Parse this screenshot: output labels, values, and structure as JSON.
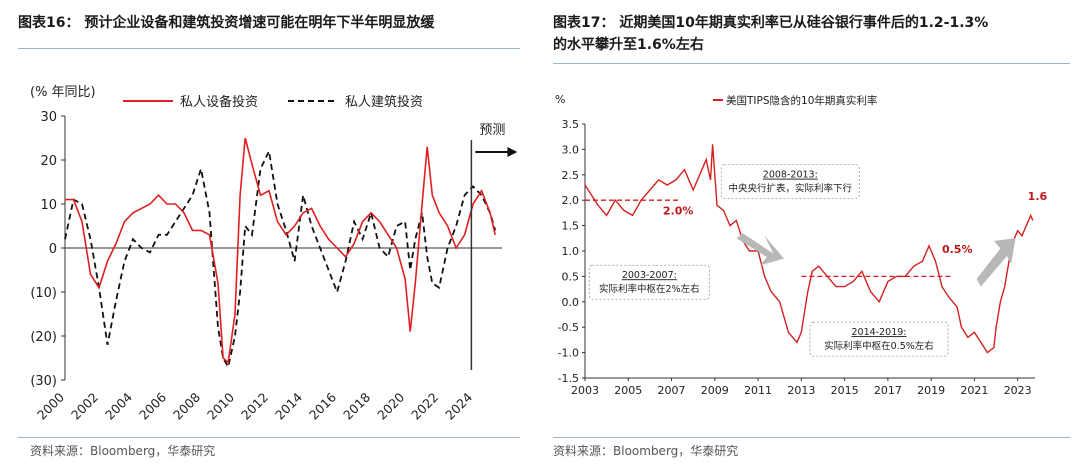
{
  "left": {
    "title": "图表16：  预计企业设备和建筑投资增速可能在明年下半年明显放缓",
    "source": "资料来源：Bloomberg，华泰研究",
    "chart_data": {
      "type": "line",
      "ylabel": "(% 年同比)",
      "ylim": [
        -30,
        30
      ],
      "yticks": [
        30,
        20,
        10,
        0,
        -10,
        -20,
        -30
      ],
      "ytick_labels": [
        "30",
        "20",
        "10",
        "0",
        "(10)",
        "(20)",
        "(30)"
      ],
      "xlim": [
        2000,
        2025.7
      ],
      "xticks": [
        2000,
        2002,
        2004,
        2006,
        2008,
        2010,
        2012,
        2014,
        2016,
        2018,
        2020,
        2022,
        2024
      ],
      "xtick_labels": [
        "2000",
        "2002",
        "2004",
        "2006",
        "2008",
        "2010",
        "2012",
        "2014",
        "2016",
        "2018",
        "2020",
        "2022",
        "2024"
      ],
      "forecast_line_x": 2023.9,
      "forecast_label": "预测",
      "legend_position": "top",
      "series": [
        {
          "name": "私人设备投资",
          "color": "#e02020",
          "dash": "solid",
          "x": [
            2000,
            2000.5,
            2001,
            2001.5,
            2002,
            2002.5,
            2003,
            2003.5,
            2004,
            2004.5,
            2005,
            2005.5,
            2006,
            2006.5,
            2007,
            2007.5,
            2008,
            2008.5,
            2009,
            2009.3,
            2009.6,
            2010,
            2010.3,
            2010.6,
            2011,
            2011.5,
            2012,
            2012.5,
            2013,
            2013.5,
            2014,
            2014.5,
            2015,
            2015.5,
            2016,
            2016.5,
            2017,
            2017.5,
            2018,
            2018.5,
            2019,
            2019.5,
            2020,
            2020.3,
            2020.6,
            2021,
            2021.3,
            2021.6,
            2022,
            2022.5,
            2023,
            2023.5,
            2024,
            2024.5,
            2025,
            2025.3
          ],
          "y": [
            11,
            11,
            6,
            -6,
            -9,
            -3,
            1,
            6,
            8,
            9,
            10,
            12,
            10,
            10,
            8,
            4,
            4,
            3,
            -8,
            -25,
            -26,
            -15,
            12,
            25,
            19,
            12,
            13,
            6,
            3,
            5,
            8,
            9,
            5,
            2,
            0,
            -2,
            1,
            6,
            8,
            6,
            3,
            0,
            -7,
            -19,
            -8,
            10,
            23,
            12,
            8,
            5,
            0,
            3,
            10,
            13,
            8,
            3
          ]
        },
        {
          "name": "私人建筑投资",
          "color": "#111111",
          "dash": "dashed",
          "x": [
            2000,
            2000.5,
            2001,
            2001.5,
            2002,
            2002.5,
            2003,
            2003.5,
            2004,
            2004.5,
            2005,
            2005.5,
            2006,
            2006.5,
            2007,
            2007.5,
            2008,
            2008.5,
            2009,
            2009.3,
            2009.6,
            2010,
            2010.3,
            2010.6,
            2011,
            2011.5,
            2012,
            2012.5,
            2013,
            2013.5,
            2014,
            2014.5,
            2015,
            2015.5,
            2016,
            2016.5,
            2017,
            2017.5,
            2018,
            2018.5,
            2019,
            2019.5,
            2020,
            2020.3,
            2020.6,
            2021,
            2021.3,
            2021.6,
            2022,
            2022.5,
            2023,
            2023.5,
            2024,
            2024.5,
            2025,
            2025.3
          ],
          "y": [
            2,
            11,
            10,
            2,
            -9,
            -22,
            -12,
            -3,
            2,
            0,
            -1,
            3,
            3,
            6,
            9,
            12,
            18,
            8,
            -18,
            -25,
            -27,
            -20,
            -10,
            5,
            3,
            18,
            22,
            10,
            4,
            -3,
            12,
            5,
            0,
            -5,
            -10,
            -3,
            6,
            2,
            8,
            0,
            -2,
            5,
            6,
            -5,
            2,
            8,
            -2,
            -8,
            -9,
            0,
            5,
            12,
            14,
            12,
            8,
            4
          ]
        }
      ]
    }
  },
  "right": {
    "title": "图表17：  近期美国10年期真实利率已从硅谷银行事件后的1.2-1.3%\n的水平攀升至1.6%左右",
    "source": "资料来源：Bloomberg，华泰研究",
    "chart_data": {
      "type": "line",
      "ylabel": "%",
      "ylim": [
        -1.5,
        3.5
      ],
      "yticks": [
        3.5,
        3.0,
        2.5,
        2.0,
        1.5,
        1.0,
        0.5,
        0.0,
        -0.5,
        -1.0,
        -1.5
      ],
      "ytick_labels": [
        "3.5",
        "3.0",
        "2.5",
        "2.0",
        "1.5",
        "1.0",
        "0.5",
        "0.0",
        "-0.5",
        "-1.0",
        "-1.5"
      ],
      "xlim": [
        2003,
        2023.8
      ],
      "xticks": [
        2003,
        2005,
        2007,
        2009,
        2011,
        2013,
        2015,
        2017,
        2019,
        2021,
        2023
      ],
      "xtick_labels": [
        "2003",
        "2005",
        "2007",
        "2009",
        "2011",
        "2013",
        "2015",
        "2017",
        "2019",
        "2021",
        "2023"
      ],
      "legend_position": "top-left",
      "series": [
        {
          "name": "美国TIPS隐含的10年期真实利率",
          "color": "#d42020",
          "x": [
            2003,
            2003.3,
            2003.6,
            2004,
            2004.4,
            2004.8,
            2005.2,
            2005.6,
            2006,
            2006.4,
            2006.8,
            2007.2,
            2007.6,
            2008,
            2008.3,
            2008.6,
            2008.8,
            2008.9,
            2009.1,
            2009.4,
            2009.7,
            2010,
            2010.3,
            2010.6,
            2011,
            2011.3,
            2011.6,
            2012,
            2012.4,
            2012.8,
            2013,
            2013.3,
            2013.5,
            2013.8,
            2014.2,
            2014.6,
            2015,
            2015.4,
            2015.8,
            2016.2,
            2016.6,
            2017,
            2017.4,
            2017.8,
            2018.2,
            2018.6,
            2018.9,
            2019.2,
            2019.5,
            2019.8,
            2020,
            2020.2,
            2020.4,
            2020.7,
            2021,
            2021.3,
            2021.6,
            2021.9,
            2022,
            2022.2,
            2022.4,
            2022.6,
            2022.8,
            2023,
            2023.2,
            2023.4,
            2023.6,
            2023.7
          ],
          "y": [
            2.3,
            2.1,
            1.9,
            1.7,
            2.0,
            1.8,
            1.7,
            2.0,
            2.2,
            2.4,
            2.3,
            2.4,
            2.6,
            2.2,
            2.5,
            2.8,
            2.4,
            3.1,
            1.9,
            1.8,
            1.5,
            1.6,
            1.2,
            1.0,
            1.0,
            0.5,
            0.2,
            0.0,
            -0.6,
            -0.8,
            -0.6,
            0.2,
            0.6,
            0.7,
            0.5,
            0.3,
            0.3,
            0.4,
            0.6,
            0.2,
            0.0,
            0.4,
            0.5,
            0.5,
            0.7,
            0.8,
            1.1,
            0.8,
            0.3,
            0.1,
            0.0,
            -0.1,
            -0.5,
            -0.7,
            -0.6,
            -0.8,
            -1.0,
            -0.9,
            -0.5,
            0.0,
            0.3,
            0.8,
            1.2,
            1.4,
            1.3,
            1.5,
            1.7,
            1.6
          ]
        }
      ],
      "reference_lines": [
        {
          "label": "2.0%",
          "y": 2.0,
          "x_from": 2003,
          "x_to": 2007.3
        },
        {
          "label": "0.5%",
          "y": 0.5,
          "x_from": 2013,
          "x_to": 2020
        }
      ],
      "end_label": {
        "text": "1.6",
        "x": 2023.6,
        "y": 1.6
      },
      "annotations": [
        {
          "lines": [
            "2003-2007:",
            "实际利率中枢在2%左右"
          ]
        },
        {
          "lines": [
            "2008-2013:",
            "中央央行扩表，实际利率下行"
          ]
        },
        {
          "lines": [
            "2014-2019:",
            "实际利率中枢在0.5%左右"
          ]
        }
      ]
    }
  }
}
